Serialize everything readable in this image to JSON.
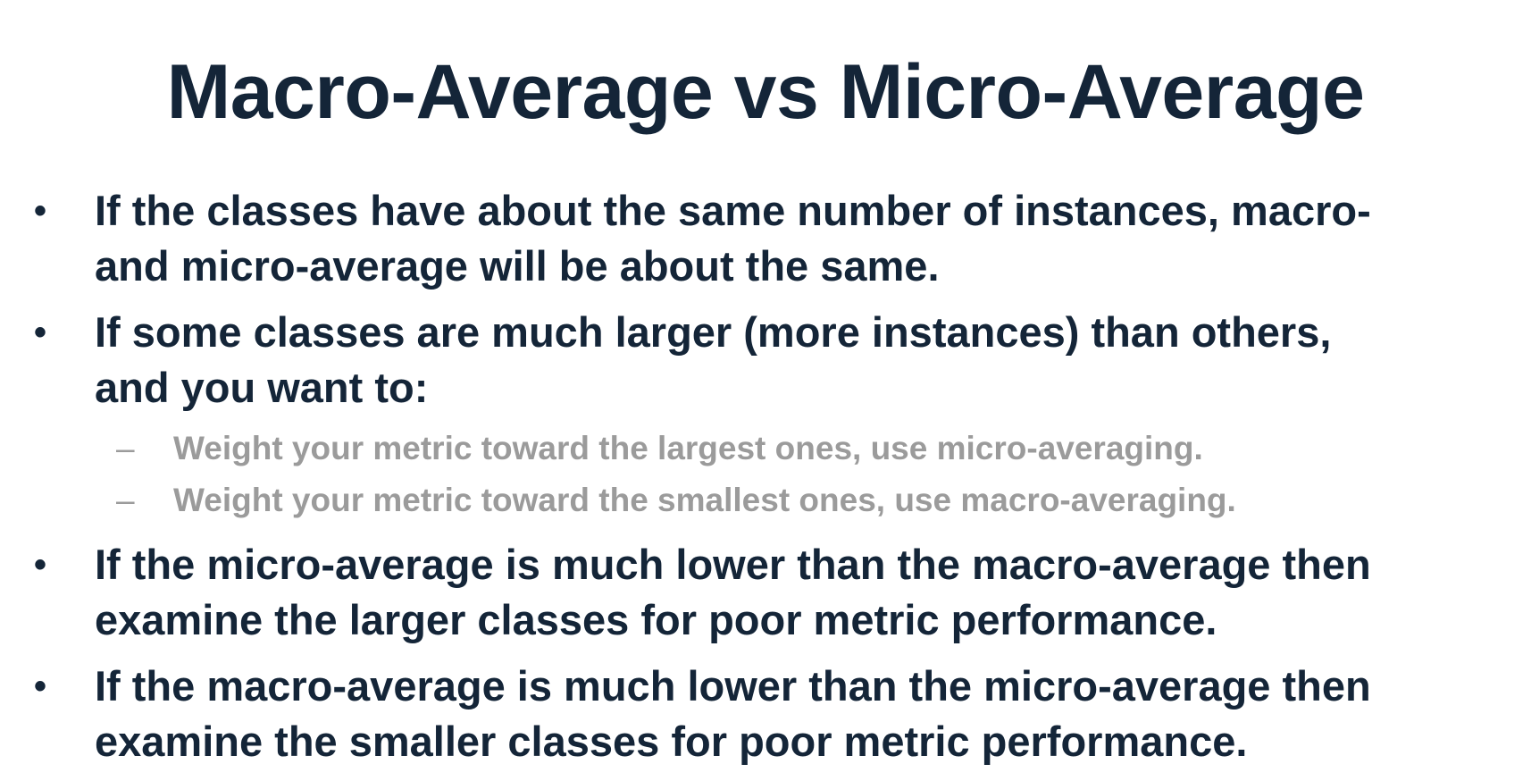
{
  "slide": {
    "title": "Macro-Average vs Micro-Average",
    "bullets": [
      {
        "marker": "•",
        "line1": "If the classes have about the same number of instances, macro-",
        "line2": "and micro-average will be about the same."
      },
      {
        "marker": "•",
        "line1": "If some classes are much larger (more instances) than others,",
        "line2": "and you want to:",
        "sub_items": [
          {
            "marker": "–",
            "text": "Weight your metric toward the largest ones, use micro-averaging."
          },
          {
            "marker": "–",
            "text": "Weight your metric toward the smallest ones, use macro-averaging."
          }
        ]
      },
      {
        "marker": "•",
        "line1": "If the micro-average is much lower than the macro-average then",
        "line2": "examine the larger classes for poor metric performance."
      },
      {
        "marker": "•",
        "line1": "If the macro-average is much lower than the micro-average then",
        "line2": "examine the smaller classes for poor metric performance."
      }
    ],
    "colors": {
      "title": "#142538",
      "body": "#142538",
      "sub": "#9b9b9b",
      "background": "#ffffff"
    }
  }
}
